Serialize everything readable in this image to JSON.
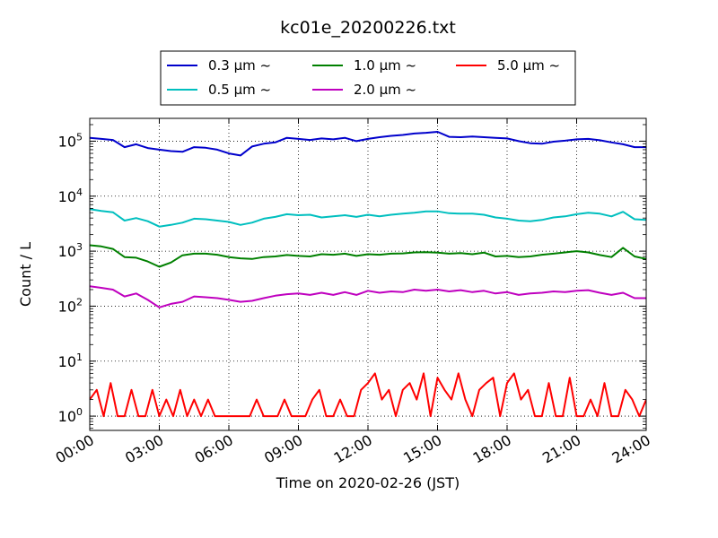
{
  "chart_data": {
    "type": "line",
    "title": "kc01e_20200226.txt",
    "xlabel": "Time on 2020-02-26 (JST)",
    "ylabel": "Count / L",
    "y_scale": "log",
    "ylim": [
      0.55,
      260000
    ],
    "xlim_hours": [
      0,
      24
    ],
    "x_tick_labels": [
      "00:00",
      "03:00",
      "06:00",
      "09:00",
      "12:00",
      "15:00",
      "18:00",
      "21:00",
      "24:00"
    ],
    "y_tick_labels": [
      {
        "base": "10",
        "exp": "0"
      },
      {
        "base": "10",
        "exp": "1"
      },
      {
        "base": "10",
        "exp": "2"
      },
      {
        "base": "10",
        "exp": "3"
      },
      {
        "base": "10",
        "exp": "4"
      },
      {
        "base": "10",
        "exp": "5"
      }
    ],
    "grid": true,
    "legend_position": "top-center",
    "legend": [
      {
        "label": "0.3 μm ~",
        "color": "#0000cc"
      },
      {
        "label": "0.5 μm ~",
        "color": "#00bfbf"
      },
      {
        "label": "1.0 μm ~",
        "color": "#008000"
      },
      {
        "label": "2.0 μm ~",
        "color": "#bf00bf"
      },
      {
        "label": "5.0 μm ~",
        "color": "#ff0000"
      }
    ],
    "series": [
      {
        "name": "0.3 μm ~",
        "color": "#0000cc",
        "x": [
          0,
          0.5,
          1,
          1.5,
          2,
          2.5,
          3,
          3.5,
          4,
          4.5,
          5,
          5.5,
          6,
          6.5,
          7,
          7.5,
          8,
          8.5,
          9,
          9.5,
          10,
          10.5,
          11,
          11.5,
          12,
          12.5,
          13,
          13.5,
          14,
          14.5,
          15,
          15.5,
          16,
          16.5,
          17,
          17.5,
          18,
          18.5,
          19,
          19.5,
          20,
          20.5,
          21,
          21.5,
          22,
          22.5,
          23,
          23.5,
          24
        ],
        "y": [
          115000,
          110000,
          105000,
          78000,
          88000,
          75000,
          70000,
          66000,
          64000,
          78000,
          76000,
          70000,
          60000,
          55000,
          80000,
          90000,
          95000,
          115000,
          110000,
          105000,
          112000,
          108000,
          115000,
          100000,
          110000,
          118000,
          125000,
          130000,
          138000,
          142000,
          148000,
          120000,
          118000,
          122000,
          118000,
          115000,
          112000,
          100000,
          92000,
          90000,
          98000,
          102000,
          108000,
          110000,
          104000,
          95000,
          88000,
          78000,
          78000
        ]
      },
      {
        "name": "0.5 μm ~",
        "color": "#00bfbf",
        "x": [
          0,
          0.5,
          1,
          1.5,
          2,
          2.5,
          3,
          3.5,
          4,
          4.5,
          5,
          5.5,
          6,
          6.5,
          7,
          7.5,
          8,
          8.5,
          9,
          9.5,
          10,
          10.5,
          11,
          11.5,
          12,
          12.5,
          13,
          13.5,
          14,
          14.5,
          15,
          15.5,
          16,
          16.5,
          17,
          17.5,
          18,
          18.5,
          19,
          19.5,
          20,
          20.5,
          21,
          21.5,
          22,
          22.5,
          23,
          23.5,
          24
        ],
        "y": [
          5800,
          5400,
          5100,
          3600,
          4000,
          3500,
          2800,
          3000,
          3300,
          3900,
          3800,
          3600,
          3400,
          3000,
          3300,
          3900,
          4200,
          4700,
          4500,
          4600,
          4100,
          4300,
          4500,
          4200,
          4600,
          4300,
          4600,
          4800,
          5000,
          5300,
          5300,
          4900,
          4800,
          4800,
          4600,
          4100,
          3900,
          3600,
          3500,
          3700,
          4100,
          4300,
          4700,
          5000,
          4800,
          4300,
          5200,
          3800,
          3700
        ]
      },
      {
        "name": "1.0 μm ~",
        "color": "#008000",
        "x": [
          0,
          0.5,
          1,
          1.5,
          2,
          2.5,
          3,
          3.5,
          4,
          4.5,
          5,
          5.5,
          6,
          6.5,
          7,
          7.5,
          8,
          8.5,
          9,
          9.5,
          10,
          10.5,
          11,
          11.5,
          12,
          12.5,
          13,
          13.5,
          14,
          14.5,
          15,
          15.5,
          16,
          16.5,
          17,
          17.5,
          18,
          18.5,
          19,
          19.5,
          20,
          20.5,
          21,
          21.5,
          22,
          22.5,
          23,
          23.5,
          24
        ],
        "y": [
          1280,
          1220,
          1100,
          780,
          760,
          650,
          520,
          620,
          840,
          900,
          900,
          860,
          780,
          740,
          720,
          780,
          800,
          850,
          820,
          800,
          880,
          860,
          900,
          820,
          880,
          860,
          900,
          910,
          950,
          960,
          940,
          900,
          920,
          880,
          940,
          800,
          820,
          780,
          800,
          860,
          900,
          950,
          1000,
          950,
          850,
          780,
          1150,
          800,
          720
        ]
      },
      {
        "name": "2.0 μm ~",
        "color": "#bf00bf",
        "x": [
          0,
          0.5,
          1,
          1.5,
          2,
          2.5,
          3,
          3.5,
          4,
          4.5,
          5,
          5.5,
          6,
          6.5,
          7,
          7.5,
          8,
          8.5,
          9,
          9.5,
          10,
          10.5,
          11,
          11.5,
          12,
          12.5,
          13,
          13.5,
          14,
          14.5,
          15,
          15.5,
          16,
          16.5,
          17,
          17.5,
          18,
          18.5,
          19,
          19.5,
          20,
          20.5,
          21,
          21.5,
          22,
          22.5,
          23,
          23.5,
          24
        ],
        "y": [
          230,
          215,
          200,
          150,
          170,
          130,
          95,
          110,
          120,
          150,
          145,
          140,
          130,
          120,
          125,
          140,
          155,
          165,
          170,
          160,
          175,
          160,
          180,
          160,
          190,
          175,
          185,
          180,
          200,
          190,
          200,
          185,
          195,
          180,
          190,
          170,
          180,
          160,
          170,
          175,
          185,
          180,
          190,
          195,
          175,
          160,
          175,
          140,
          140
        ]
      },
      {
        "name": "5.0 μm ~",
        "color": "#ff0000",
        "x": [
          0,
          0.3,
          0.6,
          0.9,
          1.2,
          1.5,
          1.8,
          2.1,
          2.4,
          2.7,
          3.0,
          3.3,
          3.6,
          3.9,
          4.2,
          4.5,
          4.8,
          5.1,
          5.4,
          5.7,
          6.0,
          6.3,
          6.6,
          6.9,
          7.2,
          7.5,
          7.8,
          8.1,
          8.4,
          8.7,
          9.0,
          9.3,
          9.6,
          9.9,
          10.2,
          10.5,
          10.8,
          11.1,
          11.4,
          11.7,
          12.0,
          12.3,
          12.6,
          12.9,
          13.2,
          13.5,
          13.8,
          14.1,
          14.4,
          14.7,
          15.0,
          15.3,
          15.6,
          15.9,
          16.2,
          16.5,
          16.8,
          17.1,
          17.4,
          17.7,
          18.0,
          18.3,
          18.6,
          18.9,
          19.2,
          19.5,
          19.8,
          20.1,
          20.4,
          20.7,
          21.0,
          21.3,
          21.6,
          21.9,
          22.2,
          22.5,
          22.8,
          23.1,
          23.4,
          23.7,
          24.0
        ],
        "y": [
          2,
          3,
          1,
          4,
          1,
          1,
          3,
          1,
          1,
          3,
          1,
          2,
          1,
          3,
          1,
          2,
          1,
          2,
          1,
          1,
          1,
          1,
          1,
          1,
          2,
          1,
          1,
          1,
          2,
          1,
          1,
          1,
          2,
          3,
          1,
          1,
          2,
          1,
          1,
          3,
          4,
          6,
          2,
          3,
          1,
          3,
          4,
          2,
          6,
          1,
          5,
          3,
          2,
          6,
          2,
          1,
          3,
          4,
          5,
          1,
          4,
          6,
          2,
          3,
          1,
          1,
          4,
          1,
          1,
          5,
          1,
          1,
          2,
          1,
          4,
          1,
          1,
          3,
          2,
          1,
          2
        ]
      }
    ]
  }
}
